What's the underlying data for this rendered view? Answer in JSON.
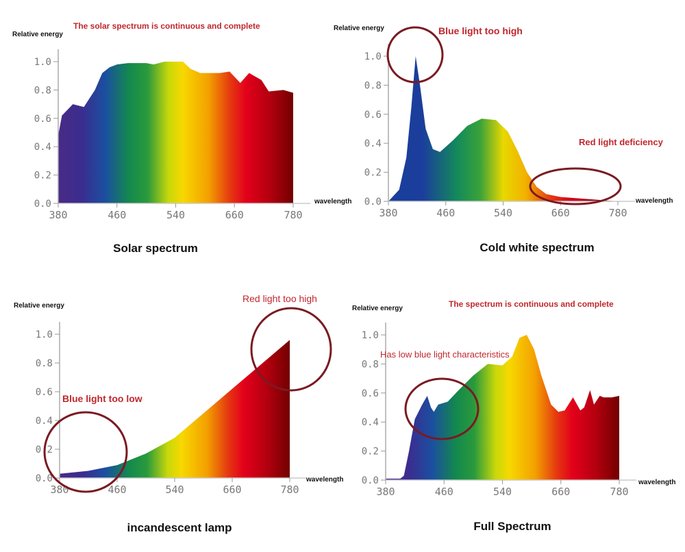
{
  "colors": {
    "annotation": "#c0272d",
    "circle": "#7a1a22",
    "axis": "#999999"
  },
  "chart_data": [
    {
      "type": "area",
      "caption": "Solar spectrum",
      "title": "The solar spectrum is continuous and complete",
      "ylabel": "Relative energy",
      "xlabel": "wavelength",
      "xticks": [
        380,
        460,
        540,
        660,
        780
      ],
      "yticks": [
        "0.0",
        "0.2",
        "0.4",
        "0.6",
        "0.8",
        "1.0"
      ],
      "ylim": [
        0,
        1
      ],
      "x": [
        380,
        385,
        400,
        415,
        430,
        440,
        450,
        460,
        475,
        500,
        510,
        525,
        545,
        555,
        570,
        590,
        630,
        650,
        672,
        690,
        715,
        730,
        760,
        780
      ],
      "y": [
        0.48,
        0.62,
        0.7,
        0.68,
        0.8,
        0.92,
        0.96,
        0.98,
        0.99,
        0.99,
        0.98,
        1.0,
        1.0,
        1.0,
        0.95,
        0.92,
        0.92,
        0.93,
        0.85,
        0.92,
        0.87,
        0.79,
        0.8,
        0.78
      ],
      "annotations": []
    },
    {
      "type": "area",
      "caption": "Cold white spectrum",
      "title": "",
      "ylabel": "Relative energy",
      "xlabel": "wavelength",
      "xticks": [
        380,
        460,
        540,
        660,
        780
      ],
      "yticks": [
        "0.0",
        "0.2",
        "0.4",
        "0.6",
        "0.8",
        "1.0"
      ],
      "ylim": [
        0,
        1
      ],
      "x": [
        380,
        395,
        405,
        412,
        418,
        424,
        432,
        442,
        452,
        470,
        490,
        510,
        530,
        550,
        570,
        590,
        610,
        630,
        660,
        700,
        740,
        780
      ],
      "y": [
        0,
        0.08,
        0.3,
        0.65,
        1.0,
        0.8,
        0.5,
        0.36,
        0.34,
        0.42,
        0.52,
        0.57,
        0.56,
        0.48,
        0.35,
        0.2,
        0.1,
        0.05,
        0.03,
        0.02,
        0.01,
        0
      ],
      "annotations": [
        "Blue light too high",
        "Red light deficiency"
      ]
    },
    {
      "type": "area",
      "caption": "incandescent lamp",
      "title": "",
      "ylabel": "Relative energy",
      "xlabel": "wavelength",
      "xticks": [
        380,
        460,
        540,
        660,
        780
      ],
      "yticks": [
        "0.0",
        "0.2",
        "0.4",
        "0.6",
        "0.8",
        "1.0"
      ],
      "ylim": [
        0,
        1
      ],
      "x": [
        380,
        420,
        460,
        500,
        540,
        600,
        660,
        720,
        780
      ],
      "y": [
        0.03,
        0.05,
        0.09,
        0.17,
        0.28,
        0.45,
        0.62,
        0.79,
        0.96
      ],
      "annotations": [
        "Red light too high",
        "Blue light too low"
      ]
    },
    {
      "type": "area",
      "caption": "Full Spectrum",
      "title": "The spectrum is continuous and complete",
      "ylabel": "Relative energy",
      "xlabel": "wavelength",
      "xticks": [
        380,
        460,
        540,
        660,
        780
      ],
      "yticks": [
        "0.0",
        "0.2",
        "0.4",
        "0.6",
        "0.8",
        "1.0"
      ],
      "ylim": [
        0,
        1
      ],
      "x": [
        380,
        400,
        405,
        412,
        420,
        430,
        437,
        442,
        446,
        452,
        465,
        480,
        500,
        520,
        540,
        560,
        575,
        590,
        605,
        620,
        640,
        655,
        668,
        685,
        700,
        708,
        720,
        728,
        740,
        748,
        765,
        780
      ],
      "y": [
        0.01,
        0.01,
        0.03,
        0.2,
        0.42,
        0.52,
        0.58,
        0.5,
        0.47,
        0.52,
        0.54,
        0.62,
        0.72,
        0.8,
        0.79,
        0.85,
        0.98,
        1.0,
        0.9,
        0.72,
        0.52,
        0.47,
        0.48,
        0.57,
        0.48,
        0.5,
        0.62,
        0.52,
        0.58,
        0.57,
        0.57,
        0.58
      ],
      "annotations": [
        "Has low blue light characteristics"
      ]
    }
  ]
}
